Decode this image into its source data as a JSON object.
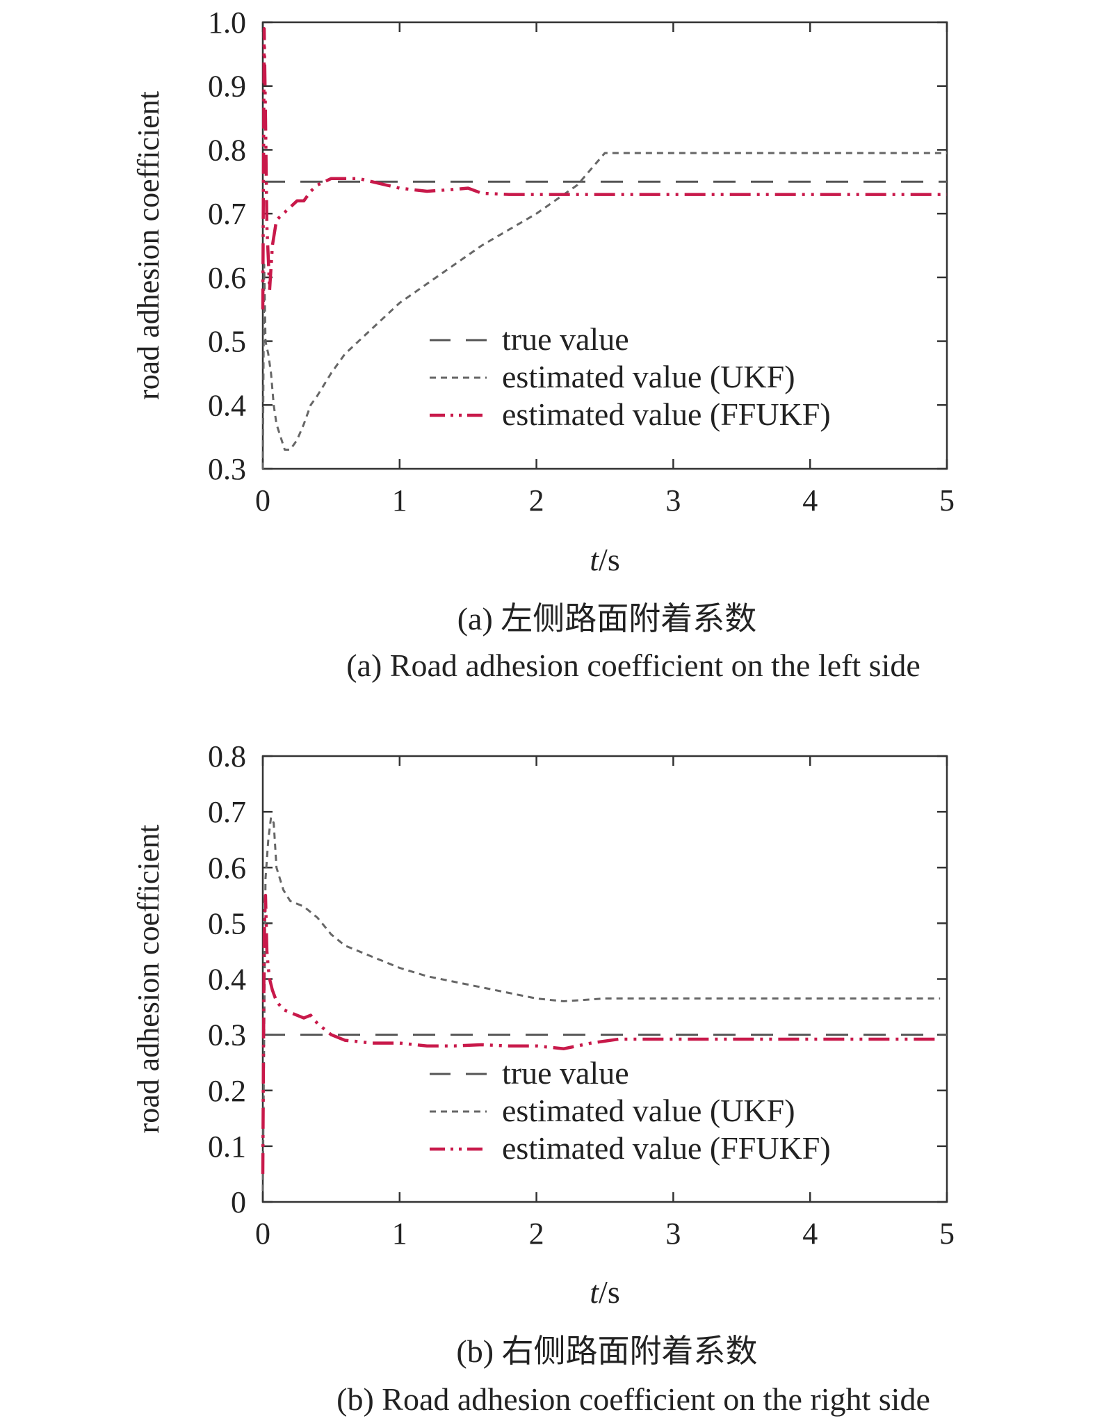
{
  "colors": {
    "true": "#555555",
    "ukf": "#666666",
    "ffukf": "#c8194a",
    "axis": "#333333"
  },
  "chart_data": [
    {
      "type": "line",
      "caption_cn": "(a) 左侧路面附着系数",
      "caption_en": "(a) Road adhesion coefficient on the left side",
      "ylabel": "road adhesion coefficient",
      "xlabel_italic": "t",
      "xlabel_rest": "/s",
      "xlim": [
        0,
        5
      ],
      "ylim": [
        0.3,
        1.0
      ],
      "xticks": [
        "0",
        "1",
        "2",
        "3",
        "4",
        "5"
      ],
      "yticks": [
        "0.3",
        "0.4",
        "0.5",
        "0.6",
        "0.7",
        "0.8",
        "0.9",
        "1.0"
      ],
      "legend": [
        "true value",
        "estimated value (UKF)",
        "estimated value (FFUKF)"
      ],
      "series": [
        {
          "name": "true value",
          "style": "true",
          "x": [
            0,
            5
          ],
          "y": [
            0.75,
            0.75
          ]
        },
        {
          "name": "estimated value (UKF)",
          "style": "ukf",
          "x": [
            0,
            0.01,
            0.02,
            0.04,
            0.06,
            0.08,
            0.1,
            0.13,
            0.16,
            0.2,
            0.25,
            0.3,
            0.35,
            0.4,
            0.5,
            0.6,
            0.8,
            1.0,
            1.2,
            1.4,
            1.6,
            1.8,
            2.0,
            2.2,
            2.3,
            2.4,
            2.5,
            3.0,
            4.0,
            5.0
          ],
          "y": [
            0.3,
            0.62,
            0.5,
            0.48,
            0.45,
            0.4,
            0.37,
            0.35,
            0.33,
            0.33,
            0.345,
            0.37,
            0.4,
            0.415,
            0.45,
            0.48,
            0.52,
            0.56,
            0.59,
            0.62,
            0.65,
            0.675,
            0.7,
            0.73,
            0.745,
            0.77,
            0.795,
            0.795,
            0.795,
            0.795
          ]
        },
        {
          "name": "estimated value (FFUKF)",
          "style": "ffukf",
          "x": [
            0,
            0.01,
            0.02,
            0.03,
            0.04,
            0.05,
            0.07,
            0.1,
            0.15,
            0.2,
            0.25,
            0.3,
            0.35,
            0.4,
            0.5,
            0.6,
            0.7,
            0.8,
            0.9,
            1.0,
            1.2,
            1.4,
            1.5,
            1.6,
            1.8,
            2.0,
            2.5,
            3.0,
            4.0,
            5.0
          ],
          "y": [
            0.55,
            0.99,
            0.85,
            0.68,
            0.63,
            0.58,
            0.65,
            0.69,
            0.7,
            0.71,
            0.72,
            0.72,
            0.735,
            0.745,
            0.755,
            0.755,
            0.755,
            0.75,
            0.745,
            0.74,
            0.735,
            0.738,
            0.74,
            0.732,
            0.73,
            0.73,
            0.73,
            0.73,
            0.73,
            0.73
          ]
        }
      ]
    },
    {
      "type": "line",
      "caption_cn": "(b) 右侧路面附着系数",
      "caption_en": "(b) Road adhesion coefficient on the right side",
      "ylabel": "road adhesion coefficient",
      "xlabel_italic": "t",
      "xlabel_rest": "/s",
      "xlim": [
        0,
        5
      ],
      "ylim": [
        0,
        0.8
      ],
      "xticks": [
        "0",
        "1",
        "2",
        "3",
        "4",
        "5"
      ],
      "yticks": [
        "0",
        "0.1",
        "0.2",
        "0.3",
        "0.4",
        "0.5",
        "0.6",
        "0.7",
        "0.8"
      ],
      "legend": [
        "true value",
        "estimated value (UKF)",
        "estimated value (FFUKF)"
      ],
      "series": [
        {
          "name": "true value",
          "style": "true",
          "x": [
            0,
            5
          ],
          "y": [
            0.3,
            0.3
          ]
        },
        {
          "name": "estimated value (UKF)",
          "style": "ukf",
          "x": [
            0,
            0.01,
            0.02,
            0.04,
            0.06,
            0.08,
            0.1,
            0.15,
            0.2,
            0.3,
            0.4,
            0.5,
            0.6,
            0.8,
            1.0,
            1.2,
            1.4,
            1.6,
            1.8,
            2.0,
            2.2,
            2.5,
            3.0,
            4.0,
            4.95
          ],
          "y": [
            0.02,
            0.3,
            0.58,
            0.65,
            0.69,
            0.68,
            0.6,
            0.56,
            0.54,
            0.53,
            0.51,
            0.48,
            0.46,
            0.44,
            0.42,
            0.405,
            0.395,
            0.385,
            0.375,
            0.365,
            0.36,
            0.365,
            0.365,
            0.365,
            0.365
          ]
        },
        {
          "name": "estimated value (FFUKF)",
          "style": "ffukf",
          "x": [
            0,
            0.01,
            0.02,
            0.03,
            0.04,
            0.05,
            0.07,
            0.1,
            0.15,
            0.2,
            0.3,
            0.35,
            0.4,
            0.5,
            0.6,
            0.8,
            1.0,
            1.2,
            1.4,
            1.6,
            1.8,
            2.0,
            2.2,
            2.4,
            2.6,
            3.0,
            4.0,
            4.95
          ],
          "y": [
            0.05,
            0.48,
            0.55,
            0.45,
            0.42,
            0.4,
            0.38,
            0.36,
            0.345,
            0.34,
            0.33,
            0.335,
            0.32,
            0.3,
            0.29,
            0.285,
            0.285,
            0.28,
            0.28,
            0.282,
            0.28,
            0.28,
            0.275,
            0.285,
            0.292,
            0.292,
            0.292,
            0.292
          ]
        }
      ]
    }
  ]
}
